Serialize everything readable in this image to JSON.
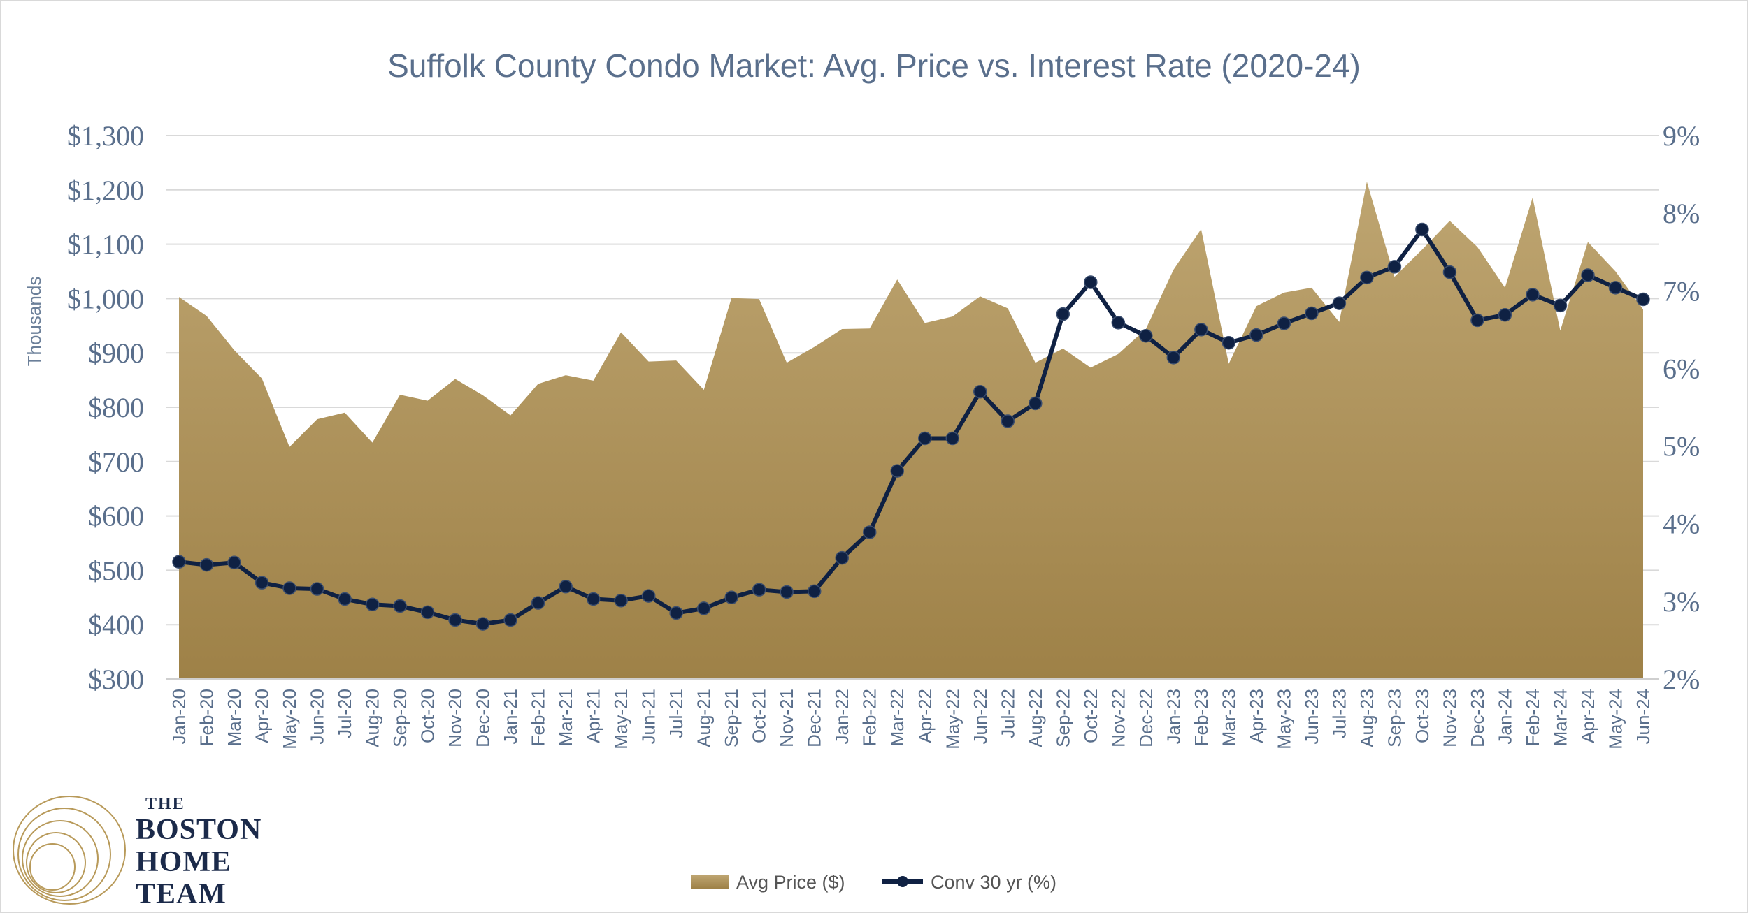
{
  "chart_data": {
    "type": "area+line",
    "title": "Suffolk County Condo Market:  Avg. Price vs. Interest Rate (2020-24)",
    "ylabel": "Thousands",
    "ylim": [
      300,
      1300
    ],
    "y_tick_values": [
      300,
      400,
      500,
      600,
      700,
      800,
      900,
      1000,
      1100,
      1200,
      1300
    ],
    "y_tick_labels": [
      "$300",
      "$400",
      "$500",
      "$600",
      "$700",
      "$800",
      "$900",
      "$1,000",
      "$1,100",
      "$1,200",
      "$1,300"
    ],
    "y2lim": [
      2,
      9
    ],
    "y2_tick_values": [
      2,
      3,
      4,
      5,
      6,
      7,
      8,
      9
    ],
    "y2_tick_labels": [
      "2%",
      "3%",
      "4%",
      "5%",
      "6%",
      "7%",
      "8%",
      "9%"
    ],
    "grid": true,
    "legend_position": "bottom",
    "categories": [
      "Jan-20",
      "Feb-20",
      "Mar-20",
      "Apr-20",
      "May-20",
      "Jun-20",
      "Jul-20",
      "Aug-20",
      "Sep-20",
      "Oct-20",
      "Nov-20",
      "Dec-20",
      "Jan-21",
      "Feb-21",
      "Mar-21",
      "Apr-21",
      "May-21",
      "Jun-21",
      "Jul-21",
      "Aug-21",
      "Sep-21",
      "Oct-21",
      "Nov-21",
      "Dec-21",
      "Jan-22",
      "Feb-22",
      "Mar-22",
      "Apr-22",
      "May-22",
      "Jun-22",
      "Jul-22",
      "Aug-22",
      "Sep-22",
      "Oct-22",
      "Nov-22",
      "Dec-22",
      "Jan-23",
      "Feb-23",
      "Mar-23",
      "Apr-23",
      "May-23",
      "Jun-23",
      "Jul-23",
      "Aug-23",
      "Sep-23",
      "Oct-23",
      "Nov-23",
      "Dec-23",
      "Jan-24",
      "Feb-24",
      "Mar-24",
      "Apr-24",
      "May-24",
      "Jun-24"
    ],
    "series": [
      {
        "name": "Avg Price ($)",
        "type": "area",
        "axis": "left",
        "color": "#a88a4e",
        "values": [
          1003,
          968,
          905,
          853,
          727,
          778,
          790,
          735,
          823,
          812,
          852,
          822,
          785,
          843,
          859,
          849,
          938,
          884,
          886,
          832,
          1001,
          999,
          882,
          911,
          944,
          945,
          1035,
          955,
          967,
          1004,
          982,
          882,
          908,
          873,
          898,
          944,
          1053,
          1128,
          880,
          986,
          1011,
          1020,
          957,
          1215,
          1040,
          1090,
          1143,
          1095,
          1020,
          1186,
          941,
          1104,
          1050,
          980
        ]
      },
      {
        "name": "Conv 30 yr (%)",
        "type": "line",
        "axis": "right",
        "color": "#0f2143",
        "values": [
          3.51,
          3.47,
          3.5,
          3.24,
          3.17,
          3.16,
          3.03,
          2.96,
          2.94,
          2.86,
          2.76,
          2.71,
          2.76,
          2.98,
          3.19,
          3.03,
          3.01,
          3.07,
          2.85,
          2.91,
          3.05,
          3.15,
          3.12,
          3.13,
          3.56,
          3.89,
          4.68,
          5.1,
          5.1,
          5.7,
          5.32,
          5.55,
          6.7,
          7.11,
          6.59,
          6.42,
          6.14,
          6.5,
          6.33,
          6.43,
          6.58,
          6.71,
          6.84,
          7.17,
          7.31,
          7.79,
          7.24,
          6.62,
          6.69,
          6.95,
          6.81,
          7.2,
          7.04,
          6.89
        ]
      }
    ]
  },
  "legend": {
    "area_label": "Avg Price ($)",
    "line_label": "Conv 30 yr (%)"
  },
  "logo": {
    "line1": "THE",
    "line2": "BOSTON",
    "line3": "HOME",
    "line4": "TEAM"
  },
  "colors": {
    "gold_light": "#b99f66",
    "gold_dark": "#9c7f45",
    "navy": "#0f2143",
    "axis_text": "#5a6f8c",
    "grid": "#d9d9d9"
  }
}
